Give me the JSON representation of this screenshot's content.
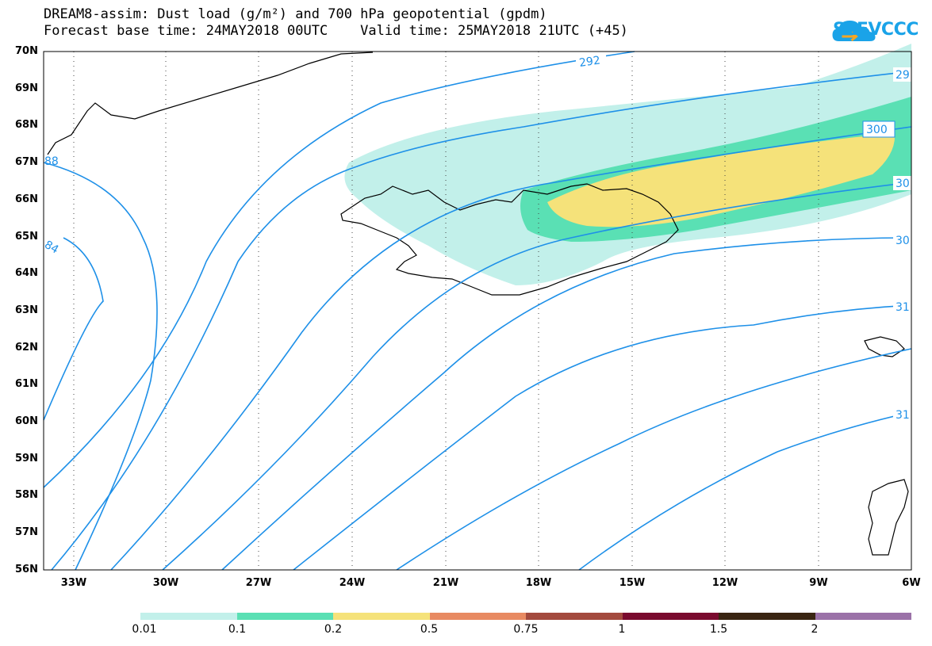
{
  "title": {
    "line1": "DREAM8-assim: Dust load (g/m²) and 700 hPa geopotential (gpdm)",
    "line2": "Forecast base time: 24MAY2018 00UTC    Valid time: 25MAY2018 21UTC (+45)"
  },
  "logo": {
    "text": "SEEVCCC",
    "icon": "cloud-icon"
  },
  "axes": {
    "y_labels": [
      "70N",
      "69N",
      "68N",
      "67N",
      "66N",
      "65N",
      "64N",
      "63N",
      "62N",
      "61N",
      "60N",
      "59N",
      "58N",
      "57N",
      "56N"
    ],
    "x_labels": [
      "33W",
      "30W",
      "27W",
      "24W",
      "21W",
      "18W",
      "15W",
      "12W",
      "9W",
      "6W"
    ]
  },
  "contour_labels": [
    "292",
    "29",
    "300",
    "30",
    "30",
    "84",
    "88",
    "31",
    "31"
  ],
  "colorbar": {
    "colors": [
      "#c2f0ea",
      "#5ae0b4",
      "#f5e27a",
      "#e88a62",
      "#a34a3e",
      "#7a0a2e",
      "#3a2512",
      "#9b72a8"
    ],
    "labels": [
      "0.01",
      "0.1",
      "0.2",
      "0.5",
      "0.75",
      "1",
      "1.5",
      "2"
    ]
  },
  "colors": {
    "contour": "#1e90e8",
    "coast": "#000000",
    "grid": "#444444"
  }
}
